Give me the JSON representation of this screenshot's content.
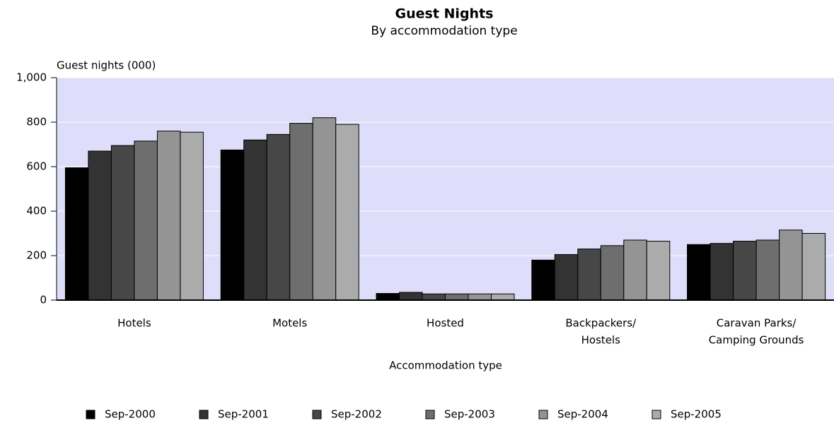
{
  "chart_data": {
    "type": "bar",
    "title": "Guest Nights",
    "subtitle": "By accommodation type",
    "y_label": "Guest nights (000)",
    "x_label": "Accommodation type",
    "categories": [
      [
        "Hotels"
      ],
      [
        "Motels"
      ],
      [
        "Hosted"
      ],
      [
        "Backpackers/",
        "Hostels"
      ],
      [
        "Caravan Parks/",
        "Camping Grounds"
      ]
    ],
    "series": [
      {
        "name": "Sep-2000",
        "color": "#000000",
        "values": [
          595,
          675,
          30,
          180,
          250
        ]
      },
      {
        "name": "Sep-2001",
        "color": "#333333",
        "values": [
          670,
          720,
          35,
          205,
          255
        ]
      },
      {
        "name": "Sep-2002",
        "color": "#474747",
        "values": [
          695,
          745,
          28,
          230,
          265
        ]
      },
      {
        "name": "Sep-2003",
        "color": "#6e6e6e",
        "values": [
          715,
          795,
          28,
          245,
          270
        ]
      },
      {
        "name": "Sep-2004",
        "color": "#949494",
        "values": [
          760,
          820,
          28,
          270,
          315
        ]
      },
      {
        "name": "Sep-2005",
        "color": "#ababab",
        "values": [
          755,
          790,
          28,
          265,
          300
        ]
      }
    ],
    "ylim": [
      0,
      1000
    ],
    "yticks": [
      0,
      200,
      400,
      600,
      800,
      {
        "value": 1000,
        "label": "1,000"
      }
    ],
    "grid": true,
    "plot_background": "#dedefa",
    "legend": "bottom"
  }
}
